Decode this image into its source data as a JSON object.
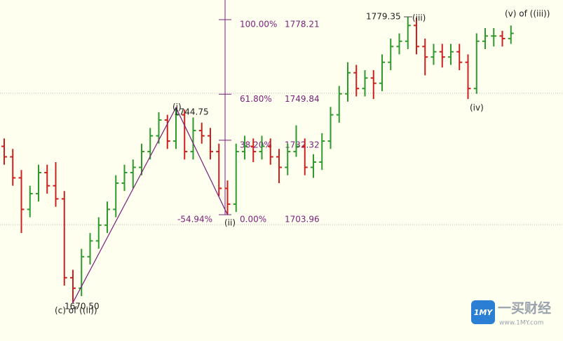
{
  "chart_data": {
    "type": "ohlc",
    "ylim": [
      1655.9,
      1785.7
    ],
    "colors": {
      "up": "#2e9a2e",
      "down": "#cc2020",
      "fib": "#7a1f7a"
    },
    "ohlc": [
      [
        1730,
        1733,
        1723,
        1726
      ],
      [
        1726,
        1729,
        1715,
        1718
      ],
      [
        1718,
        1721,
        1697,
        1706
      ],
      [
        1706,
        1715,
        1703,
        1712
      ],
      [
        1712,
        1723,
        1709,
        1720
      ],
      [
        1720,
        1723,
        1712,
        1715
      ],
      [
        1715,
        1724,
        1707,
        1710
      ],
      [
        1710,
        1713,
        1677,
        1680
      ],
      [
        1680,
        1683,
        1670.5,
        1676
      ],
      [
        1676,
        1691,
        1673,
        1688
      ],
      [
        1688,
        1697,
        1685,
        1694
      ],
      [
        1694,
        1703,
        1691,
        1700
      ],
      [
        1700,
        1709,
        1697,
        1706
      ],
      [
        1706,
        1719,
        1703,
        1716
      ],
      [
        1716,
        1723,
        1713,
        1720
      ],
      [
        1720,
        1725,
        1714,
        1722
      ],
      [
        1722,
        1731,
        1719,
        1728
      ],
      [
        1728,
        1737,
        1725,
        1734
      ],
      [
        1734,
        1743,
        1731,
        1740
      ],
      [
        1740,
        1742,
        1729,
        1732
      ],
      [
        1732,
        1744.75,
        1729,
        1742
      ],
      [
        1742,
        1744,
        1725,
        1728
      ],
      [
        1728,
        1741,
        1725,
        1736
      ],
      [
        1736,
        1739,
        1731,
        1734
      ],
      [
        1734,
        1737,
        1725,
        1728
      ],
      [
        1728,
        1731,
        1711,
        1714
      ],
      [
        1714,
        1717,
        1703.96,
        1708
      ],
      [
        1708,
        1731,
        1705,
        1728
      ],
      [
        1728,
        1734,
        1725,
        1730
      ],
      [
        1730,
        1733,
        1724,
        1728
      ],
      [
        1728,
        1734,
        1725,
        1730
      ],
      [
        1730,
        1733,
        1723,
        1726
      ],
      [
        1726,
        1729,
        1716,
        1722
      ],
      [
        1722,
        1731,
        1719,
        1728
      ],
      [
        1728,
        1738,
        1726,
        1730
      ],
      [
        1730,
        1733,
        1719,
        1722
      ],
      [
        1722,
        1727,
        1718,
        1724
      ],
      [
        1724,
        1735,
        1721,
        1732
      ],
      [
        1732,
        1745,
        1729,
        1742
      ],
      [
        1742,
        1753,
        1739,
        1750
      ],
      [
        1750,
        1762,
        1747,
        1758
      ],
      [
        1758,
        1761,
        1749,
        1752
      ],
      [
        1752,
        1759,
        1749,
        1756
      ],
      [
        1756,
        1759,
        1748,
        1754
      ],
      [
        1754,
        1765,
        1751,
        1762
      ],
      [
        1762,
        1771,
        1759,
        1768
      ],
      [
        1768,
        1773,
        1765,
        1770
      ],
      [
        1770,
        1779.35,
        1767,
        1776
      ],
      [
        1776,
        1779,
        1765,
        1768
      ],
      [
        1768,
        1771,
        1757,
        1764
      ],
      [
        1764,
        1769,
        1761,
        1766
      ],
      [
        1766,
        1769,
        1760,
        1764
      ],
      [
        1764,
        1769,
        1761,
        1766
      ],
      [
        1766,
        1769,
        1759,
        1762
      ],
      [
        1762,
        1765,
        1748,
        1752
      ],
      [
        1752,
        1773,
        1750,
        1770
      ],
      [
        1770,
        1775,
        1767,
        1772
      ],
      [
        1772,
        1775,
        1768,
        1772
      ],
      [
        1772,
        1774,
        1768,
        1771
      ],
      [
        1771,
        1776,
        1769,
        1773
      ]
    ],
    "hlines": [
      1750.2,
      1700.2
    ],
    "fib": [
      {
        "pct": "100.00%",
        "price": 1778.21
      },
      {
        "pct": "61.80%",
        "price": 1749.84
      },
      {
        "pct": "38.20%",
        "price": 1732.32
      },
      {
        "pct": "0.00%",
        "price": 1703.96
      }
    ],
    "retrace_label": "-54.94%",
    "annotations": [
      "(i)",
      "(ii)",
      "(iii)",
      "(iv)",
      "(v)  of ((iii))",
      "(c) of ((ii))",
      "1744.75",
      "1670.50",
      "1779.35"
    ],
    "logo": {
      "mark": "1MY",
      "name": "一买财经",
      "url": "www.1MY.com"
    }
  }
}
